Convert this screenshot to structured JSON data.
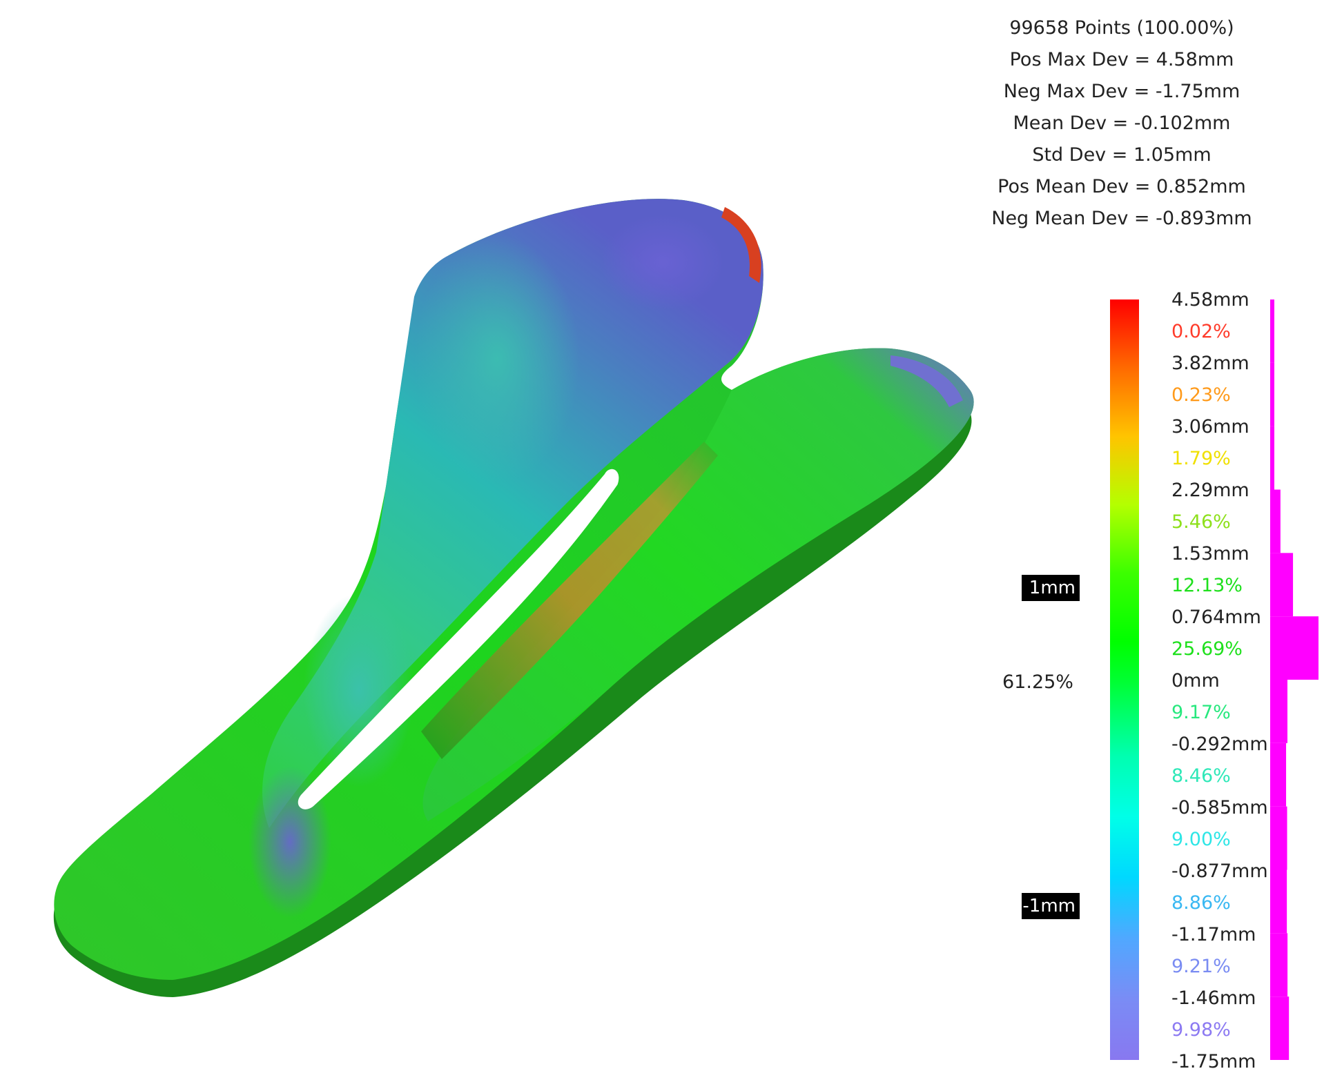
{
  "stats": {
    "points": "99658 Points (100.00%)",
    "pos_max_dev": "Pos Max Dev = 4.58mm",
    "neg_max_dev": "Neg Max Dev = -1.75mm",
    "mean_dev": "Mean Dev = -0.102mm",
    "std_dev": "Std Dev = 1.05mm",
    "pos_mean_dev": "Pos Mean Dev = 0.852mm",
    "neg_mean_dev": "Neg Mean Dev = -0.893mm"
  },
  "scale": {
    "values": [
      "4.58mm",
      "3.82mm",
      "3.06mm",
      "2.29mm",
      "1.53mm",
      "0.764mm",
      "0mm",
      "-0.292mm",
      "-0.585mm",
      "-0.877mm",
      "-1.17mm",
      "-1.46mm",
      "-1.75mm"
    ],
    "percents": [
      "0.02%",
      "0.23%",
      "1.79%",
      "5.46%",
      "12.13%",
      "25.69%",
      "9.17%",
      "8.46%",
      "9.00%",
      "8.86%",
      "9.21%",
      "9.98%"
    ],
    "percent_colors": [
      "#ff3b2a",
      "#ff9a1a",
      "#f0e000",
      "#8ee01c",
      "#1ee01c",
      "#1ee01c",
      "#27e87e",
      "#2ee8b8",
      "#2ee6e6",
      "#39b8f2",
      "#7a8cf2",
      "#8c7af2"
    ],
    "upper_marker": "1mm",
    "lower_marker": "-1mm",
    "in_tolerance": "61.25%"
  },
  "histogram": {
    "fractions": [
      0.0002,
      0.0023,
      0.0179,
      0.0546,
      0.1213,
      0.2569,
      0.0917,
      0.0846,
      0.09,
      0.0886,
      0.0921,
      0.0998
    ],
    "color": "#ff00ff"
  },
  "colors": {
    "scale_top": "#ff0000",
    "scale_bottom": "#8878f0",
    "marker_bg": "#000000"
  }
}
